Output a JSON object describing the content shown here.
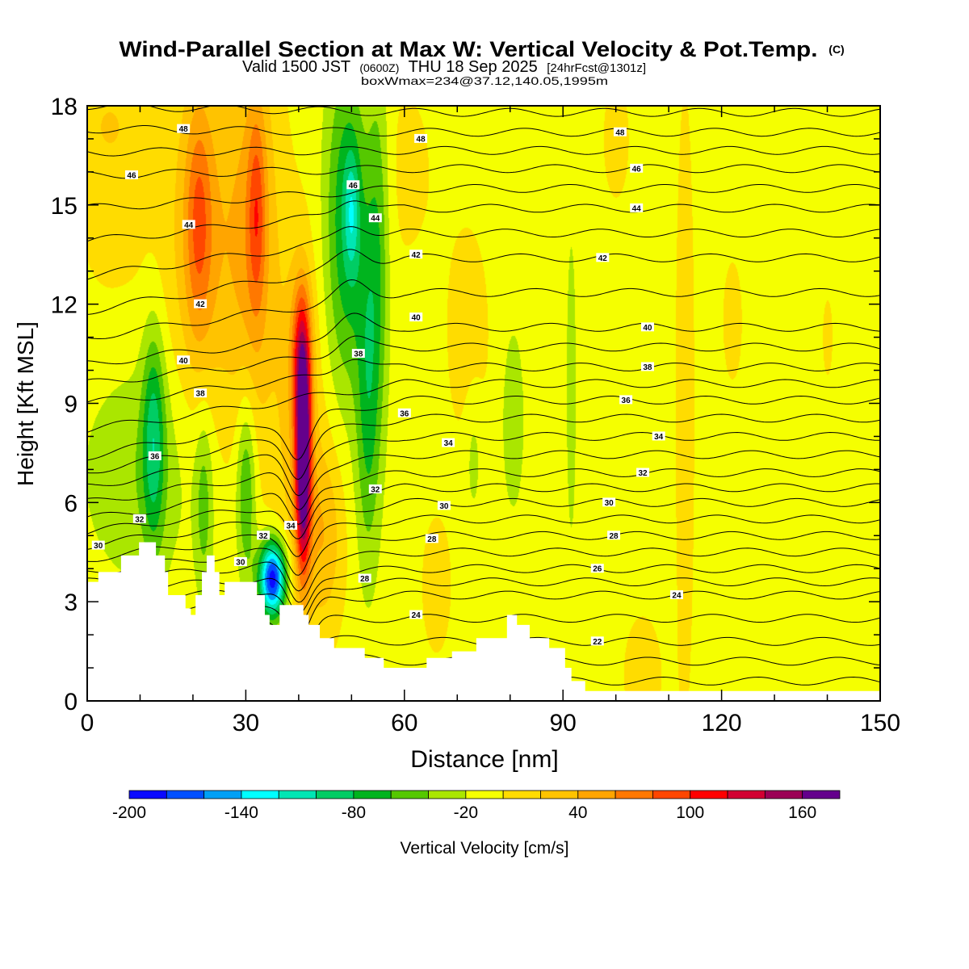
{
  "title": "Wind-Parallel Section at Max W: Vertical Velocity & Pot.Temp.",
  "copyright": "(C)",
  "subtitle_valid": "Valid 1500 JST",
  "subtitle_utc": "(0600Z)",
  "subtitle_date": "THU 18 Sep 2025",
  "subtitle_fcst": "[24hrFcst@1301z]",
  "box_info": "boxWmax=234@37.12,140.05,1995m",
  "chart_data": {
    "type": "heatmap",
    "title": "Wind-Parallel Section at Max W: Vertical Velocity & Pot.Temp.",
    "xlabel": "Distance [nm]",
    "ylabel": "Height [Kft MSL]",
    "xlim": [
      0,
      150
    ],
    "ylim": [
      0,
      18
    ],
    "xticks": [
      "0",
      "30",
      "60",
      "90",
      "120",
      "150"
    ],
    "yticks": [
      "0",
      "3",
      "6",
      "9",
      "12",
      "15",
      "18"
    ],
    "colorbar": {
      "label": "Vertical Velocity [cm/s]",
      "min": -200,
      "step": 20,
      "tick_labels": [
        "-200",
        "-140",
        "-80",
        "-20",
        "40",
        "100",
        "160"
      ],
      "tick_values": [
        -200,
        -140,
        -80,
        -20,
        40,
        100,
        160
      ],
      "colors": [
        "#0a0aff",
        "#0050ff",
        "#00a0f5",
        "#00ffff",
        "#00e6b4",
        "#00cd64",
        "#00b41e",
        "#55c800",
        "#aae600",
        "#f5ff00",
        "#ffdc00",
        "#ffc300",
        "#ffa500",
        "#ff7800",
        "#ff4600",
        "#ff0000",
        "#d20032",
        "#9b0055",
        "#64008c"
      ]
    },
    "w_background": -8,
    "w_features": [
      {
        "x": 22,
        "z": 14,
        "sx": 5,
        "sz": 4,
        "w": 45
      },
      {
        "x": 21,
        "z": 14.5,
        "sx": 1.8,
        "sz": 2.5,
        "w": 55
      },
      {
        "x": 31.5,
        "z": 14,
        "sx": 3.5,
        "sz": 4.5,
        "w": 50
      },
      {
        "x": 32,
        "z": 14.8,
        "sx": 1.2,
        "sz": 2.2,
        "w": 55
      },
      {
        "x": 40.8,
        "z": 7.2,
        "sx": 1.0,
        "sz": 2.2,
        "w": 190
      },
      {
        "x": 40.5,
        "z": 10.5,
        "sx": 1.3,
        "sz": 1.6,
        "w": 90
      },
      {
        "x": 40,
        "z": 8,
        "sx": 3,
        "sz": 4,
        "w": 40
      },
      {
        "x": 45,
        "z": 5,
        "sx": 2.5,
        "sz": 2,
        "w": 40
      },
      {
        "x": 49,
        "z": 14.5,
        "sx": 2.8,
        "sz": 3.5,
        "w": -70
      },
      {
        "x": 50,
        "z": 14.8,
        "sx": 1,
        "sz": 1.3,
        "w": -50
      },
      {
        "x": 55,
        "z": 14,
        "sx": 1.5,
        "sz": 4,
        "w": -45
      },
      {
        "x": 53,
        "z": 9,
        "sx": 1.6,
        "sz": 3.5,
        "w": -55
      },
      {
        "x": 12.5,
        "z": 8,
        "sx": 1.5,
        "sz": 2.3,
        "w": -70
      },
      {
        "x": 10,
        "z": 7,
        "sx": 8,
        "sz": 2.5,
        "w": -28
      },
      {
        "x": 35,
        "z": 3.7,
        "sx": 1.8,
        "sz": 0.8,
        "w": -190
      },
      {
        "x": 30,
        "z": 6.5,
        "sx": 1.3,
        "sz": 2,
        "w": -60
      },
      {
        "x": 22,
        "z": 6,
        "sx": 1.2,
        "sz": 2,
        "w": -40
      },
      {
        "x": 80.5,
        "z": 8.5,
        "sx": 1.5,
        "sz": 2,
        "w": -28
      },
      {
        "x": 73,
        "z": 7.5,
        "sx": 1.2,
        "sz": 1.5,
        "w": -22
      },
      {
        "x": 91.5,
        "z": 9.5,
        "sx": 0.7,
        "sz": 3.5,
        "w": -25
      },
      {
        "x": 72,
        "z": 11,
        "sx": 3,
        "sz": 2.5,
        "w": 18
      },
      {
        "x": 113,
        "z": 9,
        "sx": 1.5,
        "sz": 8,
        "w": 16
      },
      {
        "x": 122,
        "z": 11.5,
        "sx": 1.5,
        "sz": 1.5,
        "w": 16
      },
      {
        "x": 140,
        "z": 11,
        "sx": 0.8,
        "sz": 1,
        "w": 15
      },
      {
        "x": 100,
        "z": 17,
        "sx": 2,
        "sz": 1.5,
        "w": 16
      },
      {
        "x": 66,
        "z": 3.5,
        "sx": 2,
        "sz": 1.5,
        "w": 20
      },
      {
        "x": 105,
        "z": 0.8,
        "sx": 3,
        "sz": 1.5,
        "w": 16
      },
      {
        "x": 5,
        "z": 15,
        "sx": 6,
        "sz": 3,
        "w": 14
      },
      {
        "x": 4,
        "z": 17.5,
        "sx": 4,
        "sz": 1,
        "w": 20
      },
      {
        "x": 60,
        "z": 16,
        "sx": 5,
        "sz": 2.5,
        "w": 12
      }
    ],
    "theta_levels": {
      "min": 20,
      "max": 49,
      "step": 1
    },
    "theta_profile_left": [
      [
        20,
        1.5
      ],
      [
        28,
        3.9
      ],
      [
        30,
        4.7
      ],
      [
        32,
        5.5
      ],
      [
        34,
        6.5
      ],
      [
        36,
        7.4
      ],
      [
        38,
        9.0
      ],
      [
        40,
        10.2
      ],
      [
        42,
        11.8
      ],
      [
        44,
        13.9
      ],
      [
        46,
        15.9
      ],
      [
        48,
        17.3
      ],
      [
        49,
        18.0
      ]
    ],
    "theta_profile_right": [
      [
        20,
        0.6
      ],
      [
        22,
        1.8
      ],
      [
        24,
        3.2
      ],
      [
        26,
        4.0
      ],
      [
        28,
        5.0
      ],
      [
        30,
        6.0
      ],
      [
        32,
        6.9
      ],
      [
        34,
        8.0
      ],
      [
        36,
        9.1
      ],
      [
        38,
        10.1
      ],
      [
        40,
        11.3
      ],
      [
        42,
        13.4
      ],
      [
        44,
        14.9
      ],
      [
        46,
        16.1
      ],
      [
        48,
        17.2
      ],
      [
        49,
        17.8
      ]
    ],
    "contour_labels": [
      {
        "text": "48",
        "x": 18.2,
        "z": 17.3
      },
      {
        "text": "48",
        "x": 63.1,
        "z": 17.0
      },
      {
        "text": "48",
        "x": 100.8,
        "z": 17.2
      },
      {
        "text": "46",
        "x": 8.4,
        "z": 15.9
      },
      {
        "text": "46",
        "x": 50.3,
        "z": 15.6
      },
      {
        "text": "46",
        "x": 103.9,
        "z": 16.1
      },
      {
        "text": "44",
        "x": 19.2,
        "z": 14.4
      },
      {
        "text": "44",
        "x": 54.5,
        "z": 14.6
      },
      {
        "text": "44",
        "x": 103.9,
        "z": 14.9
      },
      {
        "text": "42",
        "x": 62.2,
        "z": 13.5
      },
      {
        "text": "42",
        "x": 97.5,
        "z": 13.4
      },
      {
        "text": "42",
        "x": 21.4,
        "z": 12.0
      },
      {
        "text": "40",
        "x": 62.2,
        "z": 11.6
      },
      {
        "text": "40",
        "x": 106.0,
        "z": 11.3
      },
      {
        "text": "40",
        "x": 18.2,
        "z": 10.3
      },
      {
        "text": "38",
        "x": 51.3,
        "z": 10.5
      },
      {
        "text": "38",
        "x": 106.0,
        "z": 10.1
      },
      {
        "text": "38",
        "x": 21.4,
        "z": 9.3
      },
      {
        "text": "36",
        "x": 101.9,
        "z": 9.1
      },
      {
        "text": "36",
        "x": 60.0,
        "z": 8.7
      },
      {
        "text": "36",
        "x": 12.8,
        "z": 7.4
      },
      {
        "text": "34",
        "x": 68.3,
        "z": 7.8
      },
      {
        "text": "34",
        "x": 108.1,
        "z": 8.0
      },
      {
        "text": "34",
        "x": 38.5,
        "z": 5.3
      },
      {
        "text": "32",
        "x": 105.1,
        "z": 6.9
      },
      {
        "text": "32",
        "x": 54.5,
        "z": 6.4
      },
      {
        "text": "32",
        "x": 9.9,
        "z": 5.5
      },
      {
        "text": "32",
        "x": 33.3,
        "z": 5.0
      },
      {
        "text": "30",
        "x": 67.5,
        "z": 5.9
      },
      {
        "text": "30",
        "x": 98.7,
        "z": 6.0
      },
      {
        "text": "30",
        "x": 2.1,
        "z": 4.7
      },
      {
        "text": "30",
        "x": 29.0,
        "z": 4.2
      },
      {
        "text": "28",
        "x": 65.2,
        "z": 4.9
      },
      {
        "text": "28",
        "x": 99.6,
        "z": 5.0
      },
      {
        "text": "28",
        "x": 52.5,
        "z": 3.7
      },
      {
        "text": "26",
        "x": 96.5,
        "z": 4.0
      },
      {
        "text": "24",
        "x": 62.2,
        "z": 2.6
      },
      {
        "text": "24",
        "x": 111.5,
        "z": 3.2
      },
      {
        "text": "22",
        "x": 96.5,
        "z": 1.8
      }
    ],
    "terrain": [
      [
        0,
        3.6
      ],
      [
        2.1,
        3.9
      ],
      [
        6.4,
        4.4
      ],
      [
        9.8,
        4.8
      ],
      [
        13.0,
        4.4
      ],
      [
        14.7,
        3.9
      ],
      [
        15.3,
        3.2
      ],
      [
        18.6,
        2.8
      ],
      [
        19.6,
        2.6
      ],
      [
        20.5,
        3.2
      ],
      [
        21.7,
        3.9
      ],
      [
        22.6,
        4.4
      ],
      [
        24.1,
        3.9
      ],
      [
        25.0,
        3.2
      ],
      [
        26.0,
        3.6
      ],
      [
        32.1,
        3.2
      ],
      [
        33.6,
        2.6
      ],
      [
        34.5,
        2.3
      ],
      [
        36.4,
        2.9
      ],
      [
        40.9,
        2.6
      ],
      [
        41.9,
        2.3
      ],
      [
        44.0,
        1.9
      ],
      [
        46.7,
        1.6
      ],
      [
        52.5,
        1.3
      ],
      [
        56.1,
        1.0
      ],
      [
        64.2,
        1.3
      ],
      [
        69.0,
        1.5
      ],
      [
        73.6,
        1.9
      ],
      [
        79.4,
        2.6
      ],
      [
        81.3,
        2.3
      ],
      [
        83.7,
        1.9
      ],
      [
        87.4,
        1.6
      ],
      [
        90.4,
        1.0
      ],
      [
        91.6,
        0.6
      ],
      [
        94.2,
        0.3
      ]
    ]
  }
}
